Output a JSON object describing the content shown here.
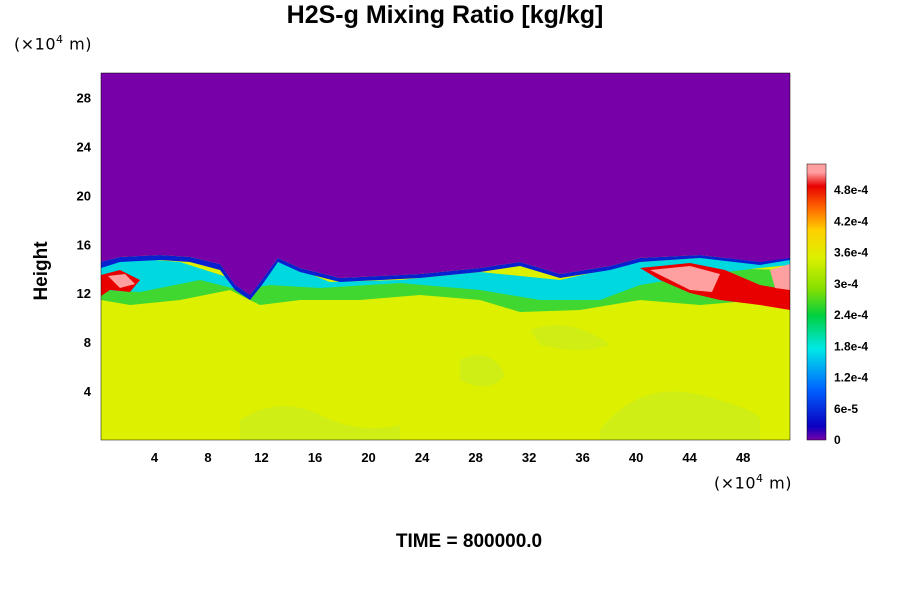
{
  "chart_data": {
    "type": "heatmap",
    "title": "H2S-g Mixing Ratio [kg/kg]",
    "ylabel": "Height",
    "xlabel": "",
    "x_unit": {
      "prefix": "(×10",
      "exp": "4",
      "suffix": " m)"
    },
    "y_unit": {
      "prefix": "(×10",
      "exp": "4",
      "suffix": " m)"
    },
    "xlim": [
      0,
      51.5
    ],
    "ylim": [
      0,
      30
    ],
    "x_ticks": [
      4,
      8,
      12,
      16,
      20,
      24,
      28,
      32,
      36,
      40,
      44,
      48
    ],
    "y_ticks": [
      4,
      8,
      12,
      16,
      20,
      24,
      28
    ],
    "colorbar": {
      "range": [
        0,
        0.00053
      ],
      "tick_values": [
        0,
        6e-05,
        0.00012,
        0.00018,
        0.00024,
        0.0003,
        0.00036,
        0.00042,
        0.00048
      ],
      "tick_labels": [
        "0",
        "6e-5",
        "1.2e-4",
        "1.8e-4",
        "2.4e-4",
        "3e-4",
        "3.6e-4",
        "4.2e-4",
        "4.8e-4"
      ],
      "colors": [
        "#7800a8",
        "#0a00c0",
        "#0060ff",
        "#00e8e8",
        "#00d040",
        "#88e000",
        "#dcf000",
        "#ffd000",
        "#ff6800",
        "#e80000",
        "#ffa0a0"
      ]
    },
    "regions": [
      {
        "name": "upper layer",
        "y_range": [
          15,
          30
        ],
        "value": 0
      },
      {
        "name": "lower layer",
        "y_range": [
          0,
          11
        ],
        "value": 0.00035
      },
      {
        "name": "high concentration patch",
        "x_range": [
          41,
          51.5
        ],
        "y_range": [
          11,
          14
        ],
        "value": 0.0005
      }
    ]
  },
  "footer": {
    "time_label": "TIME = 800000.0"
  }
}
